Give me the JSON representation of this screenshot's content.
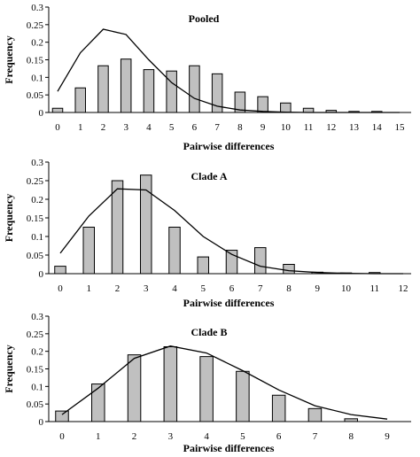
{
  "chart_data": [
    {
      "type": "bar",
      "title": "Pooled",
      "xlabel": "Pairwise differences",
      "ylabel": "Frequency",
      "ylim": [
        0,
        0.3
      ],
      "yticks": [
        "0",
        "0.05",
        "0.1",
        "0.15",
        "0.2",
        "0.25",
        "0.3"
      ],
      "categories": [
        "0",
        "1",
        "2",
        "3",
        "4",
        "5",
        "6",
        "7",
        "8",
        "9",
        "10",
        "11",
        "12",
        "13",
        "14",
        "15"
      ],
      "series": [
        {
          "kind": "bar",
          "values": [
            0.012,
            0.07,
            0.133,
            0.152,
            0.122,
            0.118,
            0.133,
            0.11,
            0.058,
            0.045,
            0.027,
            0.012,
            0.006,
            0.003,
            0.003,
            0.0
          ]
        },
        {
          "kind": "line",
          "values": [
            0.06,
            0.17,
            0.237,
            0.222,
            0.15,
            0.085,
            0.04,
            0.018,
            0.007,
            0.003,
            0.001,
            0.0,
            0.0,
            0.0,
            0.0,
            0.0
          ]
        }
      ],
      "bar_color": "#c0c0c0",
      "grid": false
    },
    {
      "type": "bar",
      "title": "Clade A",
      "xlabel": "Pairwise differences",
      "ylabel": "Frequency",
      "ylim": [
        0,
        0.3
      ],
      "yticks": [
        "0",
        "0.05",
        "0.1",
        "0.15",
        "0.2",
        "0.25",
        "0.3"
      ],
      "categories": [
        "0",
        "1",
        "2",
        "3",
        "4",
        "5",
        "6",
        "7",
        "8",
        "9",
        "10",
        "11",
        "12"
      ],
      "series": [
        {
          "kind": "bar",
          "values": [
            0.02,
            0.125,
            0.25,
            0.265,
            0.125,
            0.045,
            0.063,
            0.07,
            0.025,
            0.004,
            0.002,
            0.003,
            0.0
          ]
        },
        {
          "kind": "line",
          "values": [
            0.055,
            0.155,
            0.228,
            0.225,
            0.17,
            0.1,
            0.052,
            0.02,
            0.008,
            0.003,
            0.001,
            0.0,
            0.0
          ]
        }
      ],
      "bar_color": "#c0c0c0",
      "grid": false
    },
    {
      "type": "bar",
      "title": "Clade B",
      "xlabel": "Pairwise differences",
      "ylabel": "Frequency",
      "ylim": [
        0,
        0.3
      ],
      "yticks": [
        "0",
        "0.05",
        "0.1",
        "0.15",
        "0.2",
        "0.25",
        "0.3"
      ],
      "categories": [
        "0",
        "1",
        "2",
        "3",
        "4",
        "5",
        "6",
        "7",
        "8",
        "9"
      ],
      "series": [
        {
          "kind": "bar",
          "values": [
            0.03,
            0.107,
            0.19,
            0.213,
            0.185,
            0.143,
            0.075,
            0.037,
            0.008,
            0.0
          ]
        },
        {
          "kind": "line",
          "values": [
            0.02,
            0.095,
            0.18,
            0.215,
            0.195,
            0.145,
            0.09,
            0.045,
            0.02,
            0.007
          ]
        }
      ],
      "bar_color": "#c0c0c0",
      "grid": false
    }
  ]
}
